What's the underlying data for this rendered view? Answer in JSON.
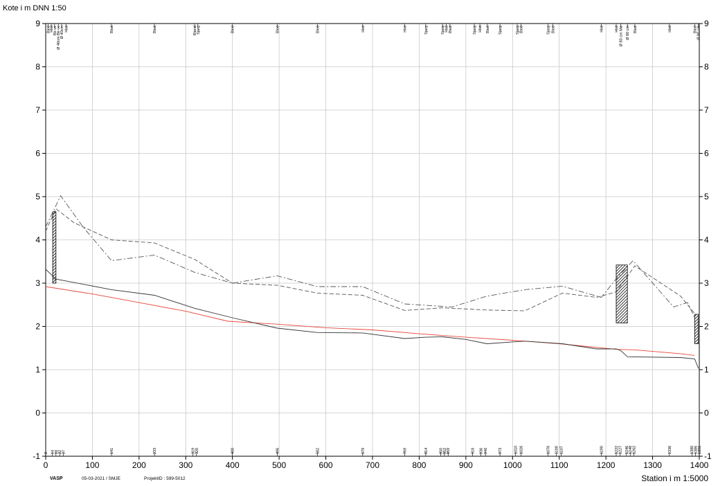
{
  "chart_data": {
    "type": "line",
    "ylabel": "Kote i m DNN 1:50",
    "xlabel": "Station i m  1:5000",
    "xlim": [
      0,
      1400
    ],
    "ylim": [
      -1,
      9
    ],
    "x_ticks": [
      0,
      100,
      200,
      300,
      400,
      500,
      600,
      700,
      800,
      900,
      1000,
      1100,
      1200,
      1300,
      1400
    ],
    "y_ticks": [
      -1,
      0,
      1,
      2,
      3,
      4,
      5,
      6,
      7,
      8,
      9
    ],
    "grid": true,
    "series": [
      {
        "color": "#e8463a",
        "style": "solid",
        "points": [
          [
            0,
            2.92
          ],
          [
            100,
            2.75
          ],
          [
            200,
            2.55
          ],
          [
            300,
            2.35
          ],
          [
            390,
            2.12
          ],
          [
            500,
            2.05
          ],
          [
            600,
            1.97
          ],
          [
            700,
            1.92
          ],
          [
            800,
            1.83
          ],
          [
            900,
            1.75
          ],
          [
            1000,
            1.68
          ],
          [
            1100,
            1.6
          ],
          [
            1222,
            1.47
          ],
          [
            1260,
            1.46
          ],
          [
            1360,
            1.37
          ],
          [
            1390,
            1.33
          ]
        ]
      },
      {
        "color": "#333333",
        "style": "solid",
        "points": [
          [
            0,
            3.32
          ],
          [
            14,
            3.18
          ],
          [
            20,
            3.1
          ],
          [
            141,
            2.85
          ],
          [
            233,
            2.72
          ],
          [
            319,
            2.42
          ],
          [
            400,
            2.2
          ],
          [
            496,
            1.96
          ],
          [
            582,
            1.86
          ],
          [
            679,
            1.85
          ],
          [
            769,
            1.72
          ],
          [
            814,
            1.75
          ],
          [
            850,
            1.76
          ],
          [
            900,
            1.7
          ],
          [
            945,
            1.6
          ],
          [
            1010,
            1.65
          ],
          [
            1026,
            1.66
          ],
          [
            1107,
            1.6
          ],
          [
            1180,
            1.48
          ],
          [
            1222,
            1.48
          ],
          [
            1232,
            1.44
          ],
          [
            1246,
            1.3
          ],
          [
            1360,
            1.28
          ],
          [
            1390,
            1.25
          ],
          [
            1398,
            1.03
          ]
        ]
      },
      {
        "color": "#555555",
        "style": "dashed",
        "points": [
          [
            0,
            4.2
          ],
          [
            22,
            4.72
          ],
          [
            60,
            4.4
          ],
          [
            141,
            4.0
          ],
          [
            233,
            3.93
          ],
          [
            319,
            3.55
          ],
          [
            400,
            3.0
          ],
          [
            496,
            2.95
          ],
          [
            582,
            2.77
          ],
          [
            679,
            2.72
          ],
          [
            769,
            2.37
          ],
          [
            850,
            2.43
          ],
          [
            945,
            2.38
          ],
          [
            1026,
            2.36
          ],
          [
            1107,
            2.77
          ],
          [
            1180,
            2.67
          ],
          [
            1222,
            2.8
          ],
          [
            1262,
            3.4
          ],
          [
            1360,
            2.7
          ],
          [
            1390,
            2.3
          ]
        ]
      },
      {
        "color": "#555555",
        "style": "dashdot",
        "points": [
          [
            0,
            4.3
          ],
          [
            32,
            5.02
          ],
          [
            80,
            4.3
          ],
          [
            141,
            3.52
          ],
          [
            233,
            3.65
          ],
          [
            319,
            3.25
          ],
          [
            400,
            3.0
          ],
          [
            496,
            3.17
          ],
          [
            582,
            2.92
          ],
          [
            679,
            2.92
          ],
          [
            769,
            2.52
          ],
          [
            870,
            2.45
          ],
          [
            945,
            2.7
          ],
          [
            1026,
            2.85
          ],
          [
            1107,
            2.93
          ],
          [
            1190,
            2.67
          ],
          [
            1222,
            3.1
          ],
          [
            1258,
            3.52
          ],
          [
            1345,
            2.45
          ],
          [
            1375,
            2.55
          ],
          [
            1390,
            2.2
          ]
        ]
      }
    ],
    "structures": [
      {
        "x": [
          15,
          22
        ],
        "top": 4.65,
        "bottom": 3.0
      },
      {
        "x": [
          1222,
          1246
        ],
        "top": 3.42,
        "bottom": 2.08
      },
      {
        "x": [
          1390,
          1398
        ],
        "top": 2.28,
        "bottom": 1.6
      }
    ],
    "top_labels": [
      {
        "x": 5,
        "text": "Bled"
      },
      {
        "x": 12,
        "text": "Hkd"
      },
      {
        "x": 19,
        "text": "Bk-ve"
      },
      {
        "x": 27,
        "text": "Ø 40cm Bk-ve"
      },
      {
        "x": 34,
        "text": "Ø 40cm"
      },
      {
        "x": 44,
        "text": "Hkd"
      },
      {
        "x": 141,
        "text": "Bled"
      },
      {
        "x": 233,
        "text": "Bled"
      },
      {
        "x": 319,
        "text": "Bland"
      },
      {
        "x": 326,
        "text": "Sjarg"
      },
      {
        "x": 400,
        "text": "Bled"
      },
      {
        "x": 496,
        "text": "Bled"
      },
      {
        "x": 582,
        "text": "Bled"
      },
      {
        "x": 679,
        "text": "Hkd"
      },
      {
        "x": 769,
        "text": "Hkd"
      },
      {
        "x": 814,
        "text": "Sjarg"
      },
      {
        "x": 850,
        "text": "Sjarg"
      },
      {
        "x": 858,
        "text": "Hkd"
      },
      {
        "x": 866,
        "text": "Bled"
      },
      {
        "x": 918,
        "text": "Sjarg"
      },
      {
        "x": 930,
        "text": "Hkd"
      },
      {
        "x": 946,
        "text": "Bled"
      },
      {
        "x": 973,
        "text": "Sjarg"
      },
      {
        "x": 1010,
        "text": "Sjarg"
      },
      {
        "x": 1018,
        "text": "Bled"
      },
      {
        "x": 1076,
        "text": "Sjarg"
      },
      {
        "x": 1086,
        "text": "Bled"
      },
      {
        "x": 1190,
        "text": "Hkd"
      },
      {
        "x": 1222,
        "text": "Hkd"
      },
      {
        "x": 1232,
        "text": "Ø 80 cm Mø"
      },
      {
        "x": 1246,
        "text": "Ø 80 cm"
      },
      {
        "x": 1262,
        "text": "Bled"
      },
      {
        "x": 1336,
        "text": "Hkd"
      },
      {
        "x": 1390,
        "text": "Bled"
      },
      {
        "x": 1398,
        "text": "Ø 80 cm"
      }
    ],
    "bottom_labels": [
      {
        "x": 0,
        "text": "0"
      },
      {
        "x": 14,
        "text": "14"
      },
      {
        "x": 22,
        "text": "18"
      },
      {
        "x": 30,
        "text": "22"
      },
      {
        "x": 38,
        "text": "27"
      },
      {
        "x": 141,
        "text": "141"
      },
      {
        "x": 233,
        "text": "233"
      },
      {
        "x": 315,
        "text": "319"
      },
      {
        "x": 323,
        "text": "320"
      },
      {
        "x": 400,
        "text": "400"
      },
      {
        "x": 496,
        "text": "496"
      },
      {
        "x": 582,
        "text": "582"
      },
      {
        "x": 679,
        "text": "679"
      },
      {
        "x": 769,
        "text": "769"
      },
      {
        "x": 814,
        "text": "814"
      },
      {
        "x": 846,
        "text": "850"
      },
      {
        "x": 854,
        "text": "852"
      },
      {
        "x": 862,
        "text": "859"
      },
      {
        "x": 914,
        "text": "918"
      },
      {
        "x": 932,
        "text": "936"
      },
      {
        "x": 942,
        "text": "946"
      },
      {
        "x": 973,
        "text": "973"
      },
      {
        "x": 1006,
        "text": "1010"
      },
      {
        "x": 1018,
        "text": "1026"
      },
      {
        "x": 1076,
        "text": "1076"
      },
      {
        "x": 1094,
        "text": "1100"
      },
      {
        "x": 1104,
        "text": "1107"
      },
      {
        "x": 1190,
        "text": "1190"
      },
      {
        "x": 1222,
        "text": "1222"
      },
      {
        "x": 1230,
        "text": "1227"
      },
      {
        "x": 1244,
        "text": "1246"
      },
      {
        "x": 1252,
        "text": "1248"
      },
      {
        "x": 1260,
        "text": "1262"
      },
      {
        "x": 1336,
        "text": "1336"
      },
      {
        "x": 1384,
        "text": "1380"
      },
      {
        "x": 1392,
        "text": "1386"
      },
      {
        "x": 1400,
        "text": "1391"
      }
    ]
  },
  "footer": {
    "brand": "VASP",
    "date_user": "05-03-2021 / SMJE",
    "project": "ProjektID : 599-5012"
  }
}
